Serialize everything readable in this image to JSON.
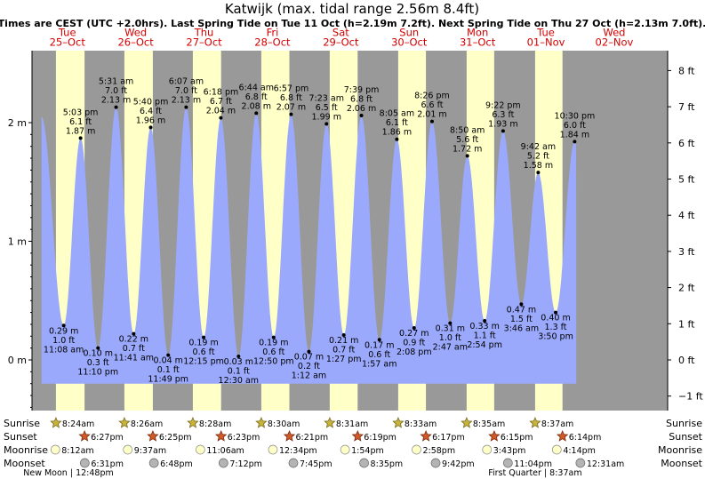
{
  "title": "Katwijk (max. tidal range 2.56m 8.4ft)",
  "subtitle": "Times are CEST (UTC +2.0hrs). Last Spring Tide on Tue 11 Oct (h=2.19m 7.2ft). Next Spring Tide on Thu 27 Oct (h=2.13m 7.0ft).",
  "colors": {
    "night": "#999999",
    "day": "#ffffc8",
    "water": "#9aa9fb",
    "moon_light": "#ffffc8",
    "moon_dark": "#b4b4b4",
    "day_label": "#d40000"
  },
  "chart_data": {
    "type": "area",
    "title": "Katwijk (max. tidal range 2.56m 8.4ft)",
    "left_axis": {
      "unit": "m",
      "ticks": [
        "0 m",
        "1 m",
        "2 m"
      ],
      "ylim": [
        -0.5,
        2.65
      ]
    },
    "right_axis": {
      "unit": "ft",
      "ticks": [
        "−1 ft",
        "0 ft",
        "1 ft",
        "2 ft",
        "3 ft",
        "4 ft",
        "5 ft",
        "6 ft",
        "7 ft",
        "8 ft"
      ]
    },
    "days": [
      {
        "dow": "Tue",
        "date": "25–Oct",
        "sunrise": "8:24am",
        "sunset": "6:27pm",
        "moonrise": "8:12am",
        "moonset": "6:31pm"
      },
      {
        "dow": "Wed",
        "date": "26–Oct",
        "sunrise": "8:26am",
        "sunset": "6:25pm",
        "moonrise": "9:37am",
        "moonset": "6:48pm"
      },
      {
        "dow": "Thu",
        "date": "27–Oct",
        "sunrise": "8:28am",
        "sunset": "6:23pm",
        "moonrise": "11:06am",
        "moonset": "7:12pm"
      },
      {
        "dow": "Fri",
        "date": "28–Oct",
        "sunrise": "8:30am",
        "sunset": "6:21pm",
        "moonrise": "12:34pm",
        "moonset": "7:45pm"
      },
      {
        "dow": "Sat",
        "date": "29–Oct",
        "sunrise": "8:31am",
        "sunset": "6:19pm",
        "moonrise": "1:54pm",
        "moonset": "8:35pm"
      },
      {
        "dow": "Sun",
        "date": "30–Oct",
        "sunrise": "8:33am",
        "sunset": "6:17pm",
        "moonrise": "2:58pm",
        "moonset": "9:42pm"
      },
      {
        "dow": "Mon",
        "date": "31–Oct",
        "sunrise": "8:35am",
        "sunset": "6:15pm",
        "moonrise": "3:43pm",
        "moonset": "11:04pm"
      },
      {
        "dow": "Tue",
        "date": "01–Nov",
        "sunrise": "8:37am",
        "sunset": "6:14pm",
        "moonrise": "4:14pm",
        "moonset": "12:31am"
      },
      {
        "dow": "Wed",
        "date": "02–Nov"
      }
    ],
    "tides": [
      {
        "day": 0,
        "hour": 11.13,
        "type": "low",
        "m": 0.29,
        "label": [
          "0.29 m",
          "1.0 ft",
          "11:08 am"
        ]
      },
      {
        "day": 0,
        "hour": 17.05,
        "type": "high",
        "m": 1.87,
        "label": [
          "5:03 pm",
          "6.1 ft",
          "1.87 m"
        ]
      },
      {
        "day": 0,
        "hour": 23.17,
        "type": "low",
        "m": 0.1,
        "label": [
          "0.10 m",
          "0.3 ft",
          "11:10 pm"
        ]
      },
      {
        "day": 1,
        "hour": 5.52,
        "type": "high",
        "m": 2.13,
        "label": [
          "5:31 am",
          "7.0 ft",
          "2.13 m"
        ]
      },
      {
        "day": 1,
        "hour": 11.68,
        "type": "low",
        "m": 0.22,
        "label": [
          "0.22 m",
          "0.7 ft",
          "11:41 am"
        ]
      },
      {
        "day": 1,
        "hour": 17.67,
        "type": "high",
        "m": 1.96,
        "label": [
          "5:40 pm",
          "6.4 ft",
          "1.96 m"
        ]
      },
      {
        "day": 1,
        "hour": 23.82,
        "type": "low",
        "m": 0.04,
        "label": [
          "0.04 m",
          "0.1 ft",
          "11:49 pm"
        ]
      },
      {
        "day": 2,
        "hour": 6.12,
        "type": "high",
        "m": 2.13,
        "label": [
          "6:07 am",
          "7.0 ft",
          "2.13 m"
        ]
      },
      {
        "day": 2,
        "hour": 12.25,
        "type": "low",
        "m": 0.19,
        "label": [
          "0.19 m",
          "0.6 ft",
          "12:15 pm"
        ]
      },
      {
        "day": 2,
        "hour": 18.3,
        "type": "high",
        "m": 2.04,
        "label": [
          "6:18 pm",
          "6.7 ft",
          "2.04 m"
        ]
      },
      {
        "day": 3,
        "hour": 0.5,
        "type": "low",
        "m": 0.03,
        "label": [
          "0.03 m",
          "0.1 ft",
          "12:30 am"
        ]
      },
      {
        "day": 3,
        "hour": 6.73,
        "type": "high",
        "m": 2.08,
        "label": [
          "6:44 am",
          "6.8 ft",
          "2.08 m"
        ]
      },
      {
        "day": 3,
        "hour": 12.83,
        "type": "low",
        "m": 0.19,
        "label": [
          "0.19 m",
          "0.6 ft",
          "12:50 pm"
        ]
      },
      {
        "day": 3,
        "hour": 18.95,
        "type": "high",
        "m": 2.07,
        "label": [
          "6:57 pm",
          "6.8 ft",
          "2.07 m"
        ]
      },
      {
        "day": 4,
        "hour": 1.2,
        "type": "low",
        "m": 0.07,
        "label": [
          "0.07 m",
          "0.2 ft",
          "1:12 am"
        ]
      },
      {
        "day": 4,
        "hour": 7.38,
        "type": "high",
        "m": 1.99,
        "label": [
          "7:23 am",
          "6.5 ft",
          "1.99 m"
        ]
      },
      {
        "day": 4,
        "hour": 13.45,
        "type": "low",
        "m": 0.21,
        "label": [
          "0.21 m",
          "0.7 ft",
          "1:27 pm"
        ]
      },
      {
        "day": 4,
        "hour": 19.65,
        "type": "high",
        "m": 2.06,
        "label": [
          "7:39 pm",
          "6.8 ft",
          "2.06 m"
        ]
      },
      {
        "day": 5,
        "hour": 1.95,
        "type": "low",
        "m": 0.17,
        "label": [
          "0.17 m",
          "0.6 ft",
          "1:57 am"
        ]
      },
      {
        "day": 5,
        "hour": 8.08,
        "type": "high",
        "m": 1.86,
        "label": [
          "8:05 am",
          "6.1 ft",
          "1.86 m"
        ]
      },
      {
        "day": 5,
        "hour": 14.13,
        "type": "low",
        "m": 0.27,
        "label": [
          "0.27 m",
          "0.9 ft",
          "2:08 pm"
        ]
      },
      {
        "day": 5,
        "hour": 20.43,
        "type": "high",
        "m": 2.01,
        "label": [
          "8:26 pm",
          "6.6 ft",
          "2.01 m"
        ]
      },
      {
        "day": 6,
        "hour": 2.78,
        "type": "low",
        "m": 0.31,
        "label": [
          "0.31 m",
          "1.0 ft",
          "2:47 am"
        ]
      },
      {
        "day": 6,
        "hour": 8.83,
        "type": "high",
        "m": 1.72,
        "label": [
          "8:50 am",
          "5.6 ft",
          "1.72 m"
        ]
      },
      {
        "day": 6,
        "hour": 14.9,
        "type": "low",
        "m": 0.33,
        "label": [
          "0.33 m",
          "1.1 ft",
          "2:54 pm"
        ]
      },
      {
        "day": 6,
        "hour": 21.37,
        "type": "high",
        "m": 1.93,
        "label": [
          "9:22 pm",
          "6.3 ft",
          "1.93 m"
        ]
      },
      {
        "day": 7,
        "hour": 3.77,
        "type": "low",
        "m": 0.47,
        "label": [
          "0.47 m",
          "1.5 ft",
          "3:46 am"
        ]
      },
      {
        "day": 7,
        "hour": 9.7,
        "type": "high",
        "m": 1.58,
        "label": [
          "9:42 am",
          "5.2 ft",
          "1.58 m"
        ]
      },
      {
        "day": 7,
        "hour": 15.83,
        "type": "low",
        "m": 0.4,
        "label": [
          "0.40 m",
          "1.3 ft",
          "3:50 pm"
        ]
      },
      {
        "day": 7,
        "hour": 22.5,
        "type": "high",
        "m": 1.84,
        "label": [
          "10:30 pm",
          "6.0 ft",
          "1.84 m"
        ]
      }
    ],
    "moon_phases": [
      {
        "text": "New Moon | 12:48pm",
        "day": 0,
        "hour": 12.8
      },
      {
        "text": "First Quarter | 8:37am",
        "day": 7,
        "hour": 8.62
      }
    ]
  },
  "rows": {
    "sunrise": "Sunrise",
    "sunset": "Sunset",
    "moonrise": "Moonrise",
    "moonset": "Moonset"
  }
}
